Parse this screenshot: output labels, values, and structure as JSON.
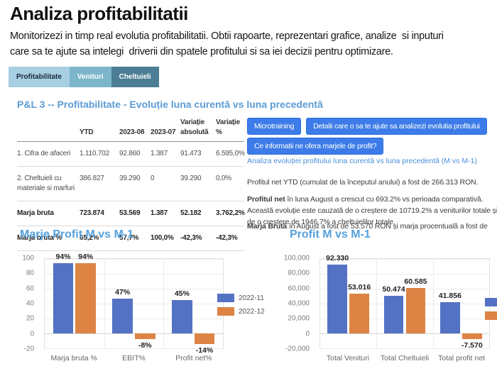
{
  "header": {
    "title": "Analiza profitabilitatii",
    "description": "Monitorizezi in timp real evolutia profitabilitatii. Obtii rapoarte, reprezentari grafice, analize  si inputuri\ncare sa te ajute sa intelegi  driverii din spatele profitului si sa iei decizii pentru optimizare."
  },
  "tabs": [
    {
      "label": "Profitabilitate",
      "active": true
    },
    {
      "label": "Venituri",
      "active": false
    },
    {
      "label": "Cheltuieli",
      "active": false
    }
  ],
  "section_title": "P&L 3 -- Profitabilitate - Evoluție luna curentă vs luna precedentă",
  "table": {
    "col_headers": [
      "",
      "YTD",
      "2023-08",
      "2023-07",
      "Variație absolută",
      "Variație %"
    ],
    "rows": [
      {
        "label": "1. Cifra de afaceri",
        "bold": false,
        "values": [
          "1.110.702",
          "92.860",
          "1.387",
          "91.473",
          "6.595,0%"
        ]
      },
      {
        "label": "2. Cheltuieli cu materiale si marfuri",
        "bold": false,
        "values": [
          "386.827",
          "39.290",
          "0",
          "39.290",
          "0,0%"
        ]
      },
      {
        "label": "Marja bruta",
        "bold": true,
        "values": [
          "723.874",
          "53.569",
          "1.387",
          "52.182",
          "3.762,2%"
        ]
      },
      {
        "label": "Marja bruta %",
        "bold": true,
        "values": [
          "65,2%",
          "57,7%",
          "100,0%",
          "-42,3%",
          "-42,3%"
        ]
      }
    ]
  },
  "actions": {
    "microtraining": "Microtraining",
    "details": "Detalii care o sa te ajute sa analizezi evolutia profitului",
    "margins_info": "Ce informatii ne ofera marjele de profit?"
  },
  "insights": {
    "heading": "Analiza evoluției profitului luna curentă vs luna precedentă (M vs M-1)",
    "ytd_line": "Profitul net YTD (cumulat de la începutul anului) a fost de 266.313 RON.",
    "profit_net_lead": "Profitul net",
    "profit_net_text": " în luna August a crescut cu 693.2% vs perioada comparativă.\nAceastă evoluție este cauzată de o creștere de 10719.2% a veniturilor totale și\nde o creștere de 1946.7% a cheltuielilor totale.",
    "marja_lead": "Marja Brută",
    "marja_text": " în August a fost de 53.570 RON și marja procentuală a fost de"
  },
  "chart_data": [
    {
      "type": "bar",
      "title": "Marje Profit M vs M-1",
      "categories": [
        "Marja bruta %",
        "EBIT%",
        "Profit net%"
      ],
      "series": [
        {
          "name": "2022-11",
          "color": "#5472c4",
          "values": [
            94,
            47,
            45
          ]
        },
        {
          "name": "2022-12",
          "color": "#dd8344",
          "values": [
            94,
            -8,
            -14
          ]
        }
      ],
      "labels": [
        [
          "94%",
          "47%",
          "45%"
        ],
        [
          "94%",
          "-8%",
          "-14%"
        ]
      ],
      "xlabel": "",
      "ylabel": "",
      "ylim": [
        -20,
        100
      ],
      "yticks": [
        100,
        80,
        60,
        40,
        20,
        0,
        -20
      ],
      "ytick_labels": [
        "100",
        "80",
        "60",
        "40",
        "20",
        "0",
        "-20"
      ],
      "grid": true,
      "legend_position": "right",
      "legend_visible": true,
      "bar_width_pct": 11.4,
      "bar_gap_pct": 1.2
    },
    {
      "type": "bar",
      "title": "Profit M vs M-1",
      "categories": [
        "Total Venituri",
        "Total Cheltuieli",
        "Total profit net"
      ],
      "series": [
        {
          "name": "",
          "color": "#5472c4",
          "values": [
            92330,
            50474,
            41856
          ]
        },
        {
          "name": "",
          "color": "#dd8344",
          "values": [
            53016,
            60585,
            -7570
          ]
        }
      ],
      "labels": [
        [
          "92.330",
          "50.474",
          "41.856"
        ],
        [
          "53.016",
          "60.585",
          "-7.570"
        ]
      ],
      "xlabel": "",
      "ylabel": "",
      "ylim": [
        -20000,
        100000
      ],
      "yticks": [
        100000,
        80000,
        60000,
        40000,
        20000,
        0,
        -20000
      ],
      "ytick_labels": [
        "100,000",
        "80,000",
        "60,000",
        "40,000",
        "20,000",
        "0",
        "-20,000"
      ],
      "grid": true,
      "legend_position": "right-clipped",
      "legend_visible": true,
      "bar_width_pct": 11.7,
      "bar_gap_pct": 1.3
    }
  ],
  "colors": {
    "accent_button": "#3d7ce8",
    "link_blue": "#4a90d9",
    "section_heading": "#5b9bd5",
    "chart_title": "#55a0dc",
    "bar_blue": "#5472c4",
    "bar_orange": "#dd8344",
    "negative_red": "#e83b2d",
    "tab_active_bg": "#a7cee1",
    "tab_mid_bg": "#7db5ca",
    "tab_dark_bg": "#4c7e95"
  }
}
